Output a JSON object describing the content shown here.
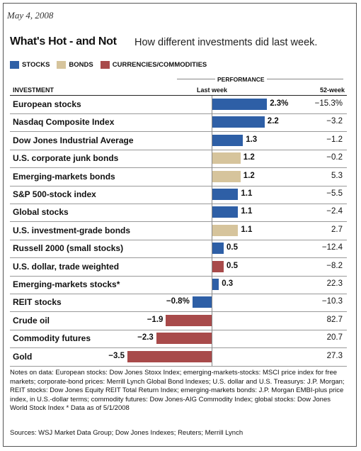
{
  "date": "May 4, 2008",
  "title": "What's Hot - and Not",
  "subtitle": "How different investments did last week.",
  "legend": [
    {
      "label": "STOCKS",
      "color": "#2e5fa6"
    },
    {
      "label": "BONDS",
      "color": "#d6c49c"
    },
    {
      "label": "CURRENCIES/COMMODITIES",
      "color": "#a84a4a"
    }
  ],
  "header": {
    "performance": "PERFORMANCE",
    "investment": "INVESTMENT",
    "last_week": "Last week",
    "week52": "52-week"
  },
  "chart_data": {
    "type": "bar",
    "orientation": "horizontal",
    "categories": [
      "European stocks",
      "Nasdaq Composite Index",
      "Dow Jones Industrial Average",
      "U.S. corporate junk bonds",
      "Emerging-markets bonds",
      "S&P 500-stock index",
      "Global stocks",
      "U.S. investment-grade bonds",
      "Russell 2000 (small stocks)",
      "U.S. dollar, trade weighted",
      "Emerging-markets stocks*",
      "REIT stocks",
      "Crude oil",
      "Commodity futures",
      "Gold"
    ],
    "last_week": [
      2.3,
      2.2,
      1.3,
      1.2,
      1.2,
      1.1,
      1.1,
      1.1,
      0.5,
      0.5,
      0.3,
      -0.8,
      -1.9,
      -2.3,
      -3.5
    ],
    "last_week_labels": [
      "2.3%",
      "2.2",
      "1.3",
      "1.2",
      "1.2",
      "1.1",
      "1.1",
      "1.1",
      "0.5",
      "0.5",
      "0.3",
      "−0.8%",
      "−1.9",
      "−2.3",
      "−3.5"
    ],
    "week52_labels": [
      "−15.3%",
      "−3.2",
      "−1.2",
      "−0.2",
      "5.3",
      "−5.5",
      "−2.4",
      "2.7",
      "−12.4",
      "−8.2",
      "22.3",
      "−10.3",
      "82.7",
      "20.7",
      "27.3"
    ],
    "groups": [
      "stocks",
      "stocks",
      "stocks",
      "bonds",
      "bonds",
      "stocks",
      "stocks",
      "bonds",
      "stocks",
      "currencies",
      "stocks",
      "stocks",
      "currencies",
      "currencies",
      "currencies"
    ],
    "colors": {
      "stocks": "#2e5fa6",
      "bonds": "#d6c49c",
      "currencies": "#a84a4a"
    }
  },
  "notes": "Notes on data: European stocks: Dow Jones Stoxx Index; emerging-markets-stocks: MSCI price index for free markets; corporate-bond prices: Merrill Lynch Global Bond Indexes; U.S. dollar and U.S. Treasurys: J.P. Morgan; REIT stocks: Dow Jones Equity REIT Total Return Index; emerging-markets bonds: J.P. Morgan EMBI-plus price index, in U.S.-dollar terms; commodity futures: Dow Jones-AIG Commodity Index; global stocks: Dow Jones World Stock Index   * Data as of 5/1/2008",
  "sources": "Sources: WSJ Market Data Group; Dow Jones Indexes; Reuters; Merrill Lynch"
}
